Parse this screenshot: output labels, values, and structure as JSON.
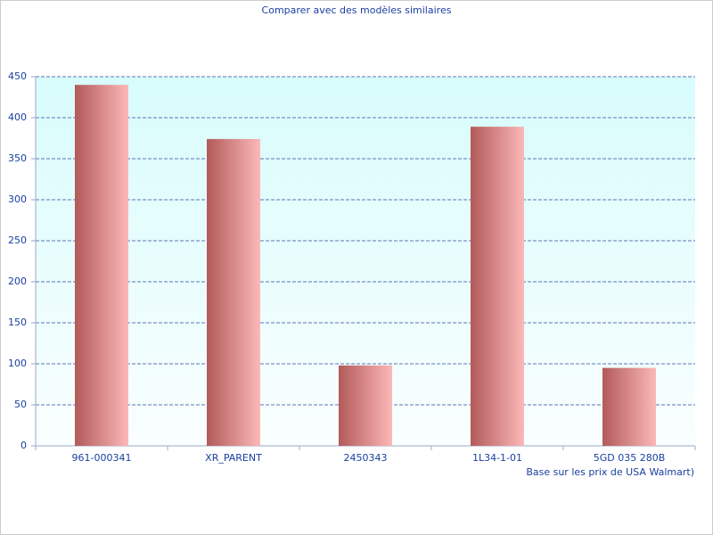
{
  "chart_data": {
    "type": "bar",
    "title": "Comparer avec des modèles similaires",
    "x_label": "Base sur les prix de USA Walmart)",
    "categories": [
      "961-000341",
      "XR_PARENT",
      "2450343",
      "1L34-1-01",
      "5GD 035 280B"
    ],
    "values": [
      440,
      374,
      98,
      389,
      95
    ],
    "color": [
      "#b35a5a",
      "#fcb8b8"
    ],
    "ylim": [
      0,
      450
    ],
    "yticks": [
      0,
      50,
      100,
      150,
      200,
      250,
      300,
      350,
      400,
      450
    ],
    "grid": true
  }
}
